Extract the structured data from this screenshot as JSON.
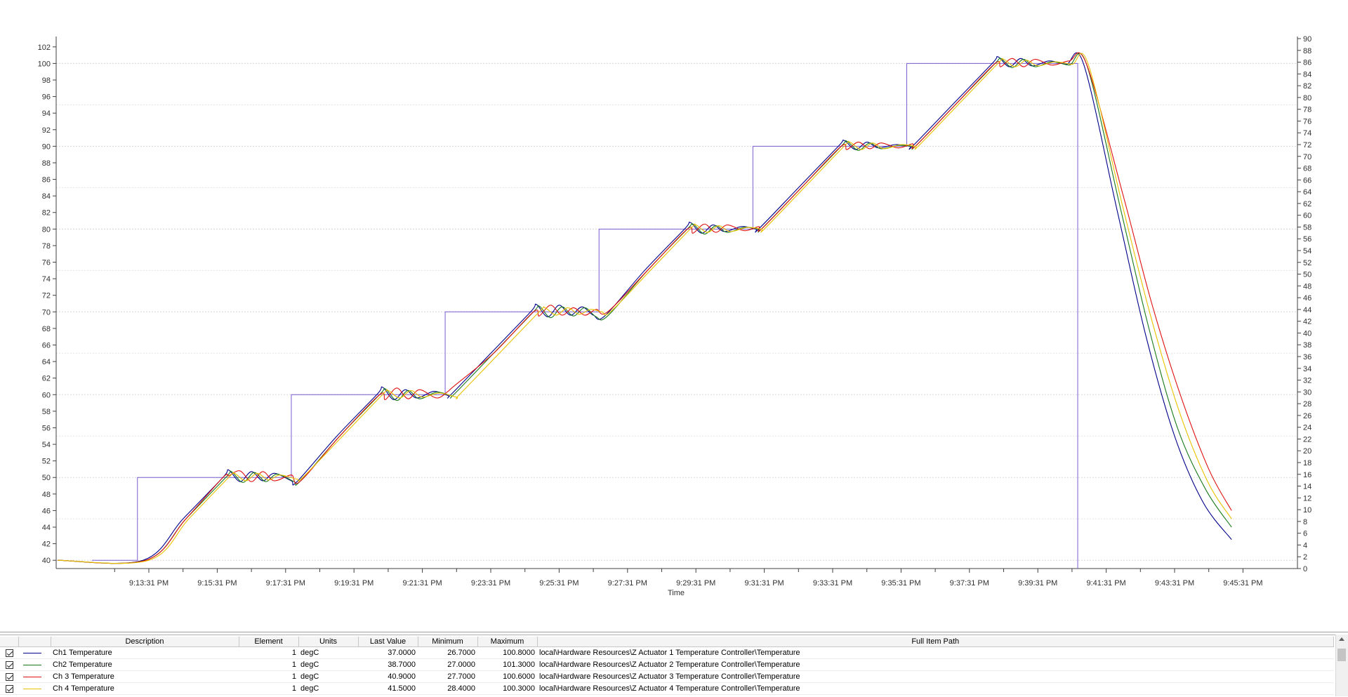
{
  "chart_data": {
    "type": "line",
    "xlabel": "Time",
    "x_ticks": [
      "9:13:31 PM",
      "9:15:31 PM",
      "9:17:31 PM",
      "9:19:31 PM",
      "9:21:31 PM",
      "9:23:31 PM",
      "9:25:31 PM",
      "9:27:31 PM",
      "9:29:31 PM",
      "9:31:31 PM",
      "9:33:31 PM",
      "9:35:31 PM",
      "9:37:31 PM",
      "9:39:31 PM",
      "9:41:31 PM",
      "9:43:31 PM",
      "9:45:31 PM"
    ],
    "y_left": {
      "min": 39,
      "max": 103,
      "ticks": [
        40,
        42,
        44,
        46,
        48,
        50,
        52,
        54,
        56,
        58,
        60,
        62,
        64,
        66,
        68,
        70,
        72,
        74,
        76,
        78,
        80,
        82,
        84,
        86,
        88,
        90,
        92,
        94,
        96,
        98,
        100,
        102
      ]
    },
    "y_right": {
      "min": 0,
      "max": 90,
      "ticks": [
        0,
        2,
        4,
        6,
        8,
        10,
        12,
        14,
        16,
        18,
        20,
        22,
        24,
        26,
        28,
        30,
        32,
        34,
        36,
        38,
        40,
        42,
        44,
        46,
        48,
        50,
        52,
        54,
        56,
        58,
        60,
        62,
        64,
        66,
        68,
        70,
        72,
        74,
        76,
        78,
        80,
        82,
        84,
        86,
        88,
        90
      ]
    },
    "grid": true,
    "setpoint": {
      "color": "#7a5ccf",
      "points": [
        [
          -100,
          40
        ],
        [
          -20,
          40
        ],
        [
          -20,
          50
        ],
        [
          250,
          50
        ],
        [
          250,
          60
        ],
        [
          520,
          60
        ],
        [
          520,
          70
        ],
        [
          790,
          70
        ],
        [
          790,
          80
        ],
        [
          1060,
          80
        ],
        [
          1060,
          90
        ],
        [
          1330,
          90
        ],
        [
          1330,
          100
        ],
        [
          1630,
          100
        ],
        [
          1630,
          39
        ]
      ]
    },
    "series": [
      {
        "name": "Ch1 Temperature",
        "color": "#00008b",
        "points": [
          [
            -160,
            40
          ],
          [
            -10,
            40
          ],
          [
            60,
            45
          ],
          [
            130,
            50
          ],
          [
            140,
            50.9
          ],
          [
            160,
            49.5
          ],
          [
            180,
            50.7
          ],
          [
            200,
            49.6
          ],
          [
            220,
            50.5
          ],
          [
            250,
            49.6
          ],
          [
            260,
            49.5
          ],
          [
            330,
            55
          ],
          [
            400,
            60
          ],
          [
            410,
            60.9
          ],
          [
            430,
            59.4
          ],
          [
            450,
            60.6
          ],
          [
            470,
            59.6
          ],
          [
            500,
            60.4
          ],
          [
            525,
            59.9
          ],
          [
            530,
            60
          ],
          [
            600,
            65
          ],
          [
            670,
            70
          ],
          [
            680,
            70.9
          ],
          [
            700,
            69.4
          ],
          [
            720,
            70.8
          ],
          [
            740,
            69.6
          ],
          [
            760,
            70.6
          ],
          [
            780,
            69.6
          ],
          [
            800,
            69.5
          ],
          [
            870,
            75
          ],
          [
            940,
            80
          ],
          [
            950,
            80.8
          ],
          [
            970,
            79.5
          ],
          [
            990,
            80.5
          ],
          [
            1010,
            79.7
          ],
          [
            1040,
            80.3
          ],
          [
            1065,
            80
          ],
          [
            1070,
            80
          ],
          [
            1140,
            85
          ],
          [
            1210,
            90
          ],
          [
            1220,
            90.7
          ],
          [
            1240,
            89.6
          ],
          [
            1260,
            90.5
          ],
          [
            1280,
            89.8
          ],
          [
            1310,
            90.2
          ],
          [
            1335,
            90
          ],
          [
            1340,
            90
          ],
          [
            1410,
            95
          ],
          [
            1480,
            100
          ],
          [
            1490,
            100.8
          ],
          [
            1510,
            99.6
          ],
          [
            1530,
            100.6
          ],
          [
            1550,
            99.7
          ],
          [
            1580,
            100.3
          ],
          [
            1610,
            99.9
          ],
          [
            1640,
            100
          ],
          [
            1700,
            82
          ],
          [
            1750,
            67
          ],
          [
            1800,
            55
          ],
          [
            1850,
            47
          ],
          [
            1900,
            42.5
          ]
        ]
      },
      {
        "name": "Ch2 Temperature",
        "color": "#1a7a1a",
        "points": [
          [
            -160,
            40
          ],
          [
            -5,
            40
          ],
          [
            65,
            45
          ],
          [
            135,
            50
          ],
          [
            145,
            50.7
          ],
          [
            165,
            49.4
          ],
          [
            185,
            50.6
          ],
          [
            205,
            49.5
          ],
          [
            225,
            50.4
          ],
          [
            255,
            49.5
          ],
          [
            265,
            49.5
          ],
          [
            335,
            55
          ],
          [
            405,
            60
          ],
          [
            415,
            60.7
          ],
          [
            435,
            59.3
          ],
          [
            455,
            60.5
          ],
          [
            475,
            59.5
          ],
          [
            505,
            60.3
          ],
          [
            530,
            59.9
          ],
          [
            535,
            60
          ],
          [
            605,
            65
          ],
          [
            675,
            70
          ],
          [
            685,
            70.7
          ],
          [
            705,
            69.3
          ],
          [
            725,
            70.6
          ],
          [
            745,
            69.5
          ],
          [
            765,
            70.5
          ],
          [
            785,
            69.4
          ],
          [
            805,
            69.5
          ],
          [
            875,
            75
          ],
          [
            945,
            80
          ],
          [
            955,
            80.6
          ],
          [
            975,
            79.4
          ],
          [
            995,
            80.4
          ],
          [
            1015,
            79.6
          ],
          [
            1045,
            80.2
          ],
          [
            1070,
            80
          ],
          [
            1075,
            80
          ],
          [
            1145,
            85
          ],
          [
            1215,
            90
          ],
          [
            1225,
            90.6
          ],
          [
            1245,
            89.5
          ],
          [
            1265,
            90.4
          ],
          [
            1285,
            89.7
          ],
          [
            1315,
            90.1
          ],
          [
            1340,
            90
          ],
          [
            1345,
            90
          ],
          [
            1415,
            95
          ],
          [
            1485,
            100
          ],
          [
            1495,
            100.6
          ],
          [
            1515,
            99.5
          ],
          [
            1535,
            100.5
          ],
          [
            1555,
            99.6
          ],
          [
            1585,
            100.2
          ],
          [
            1615,
            99.8
          ],
          [
            1645,
            100
          ],
          [
            1705,
            82.5
          ],
          [
            1755,
            68
          ],
          [
            1805,
            56
          ],
          [
            1855,
            48.5
          ],
          [
            1900,
            44
          ]
        ]
      },
      {
        "name": "Ch 3 Temperature",
        "color": "#e01010",
        "points": [
          [
            -160,
            40
          ],
          [
            -5,
            40
          ],
          [
            65,
            45
          ],
          [
            130,
            50
          ],
          [
            140,
            50.2
          ],
          [
            160,
            50.8
          ],
          [
            180,
            49.5
          ],
          [
            200,
            50.7
          ],
          [
            220,
            49.6
          ],
          [
            250,
            50.3
          ],
          [
            265,
            49.5
          ],
          [
            335,
            55
          ],
          [
            405,
            60
          ],
          [
            415,
            59.4
          ],
          [
            435,
            60.8
          ],
          [
            455,
            59.5
          ],
          [
            475,
            60.6
          ],
          [
            505,
            59.6
          ],
          [
            525,
            60.4
          ],
          [
            535,
            61
          ],
          [
            605,
            65
          ],
          [
            675,
            70
          ],
          [
            685,
            69.5
          ],
          [
            705,
            70.8
          ],
          [
            725,
            69.6
          ],
          [
            745,
            70.5
          ],
          [
            765,
            69.6
          ],
          [
            785,
            70.3
          ],
          [
            805,
            70
          ],
          [
            875,
            75
          ],
          [
            945,
            80
          ],
          [
            955,
            79.5
          ],
          [
            975,
            80.6
          ],
          [
            995,
            79.6
          ],
          [
            1015,
            80.5
          ],
          [
            1045,
            79.8
          ],
          [
            1070,
            80.3
          ],
          [
            1075,
            80
          ],
          [
            1145,
            85
          ],
          [
            1215,
            90
          ],
          [
            1225,
            89.6
          ],
          [
            1245,
            90.5
          ],
          [
            1265,
            89.7
          ],
          [
            1285,
            90.4
          ],
          [
            1315,
            89.8
          ],
          [
            1340,
            90.3
          ],
          [
            1345,
            90
          ],
          [
            1415,
            95
          ],
          [
            1485,
            100
          ],
          [
            1495,
            99.6
          ],
          [
            1515,
            100.6
          ],
          [
            1535,
            99.6
          ],
          [
            1555,
            100.5
          ],
          [
            1585,
            99.8
          ],
          [
            1615,
            100.3
          ],
          [
            1645,
            100
          ],
          [
            1710,
            84
          ],
          [
            1760,
            71
          ],
          [
            1810,
            60
          ],
          [
            1860,
            51
          ],
          [
            1900,
            46
          ]
        ]
      },
      {
        "name": "Ch 4 Temperature",
        "color": "#e8c200",
        "points": [
          [
            -160,
            40
          ],
          [
            0,
            40
          ],
          [
            70,
            45
          ],
          [
            140,
            50
          ],
          [
            150,
            50.5
          ],
          [
            170,
            49.6
          ],
          [
            190,
            50.5
          ],
          [
            210,
            49.7
          ],
          [
            230,
            50.3
          ],
          [
            260,
            49.8
          ],
          [
            270,
            50
          ],
          [
            340,
            55
          ],
          [
            410,
            60
          ],
          [
            420,
            60.5
          ],
          [
            440,
            59.6
          ],
          [
            460,
            60.5
          ],
          [
            480,
            59.7
          ],
          [
            510,
            60.2
          ],
          [
            540,
            59.7
          ],
          [
            545,
            60
          ],
          [
            615,
            65
          ],
          [
            685,
            70
          ],
          [
            695,
            70.5
          ],
          [
            715,
            69.6
          ],
          [
            735,
            70.5
          ],
          [
            755,
            69.7
          ],
          [
            775,
            70.3
          ],
          [
            795,
            70
          ],
          [
            810,
            70
          ],
          [
            880,
            75
          ],
          [
            950,
            80
          ],
          [
            960,
            80.5
          ],
          [
            980,
            79.6
          ],
          [
            1000,
            80.4
          ],
          [
            1020,
            79.7
          ],
          [
            1050,
            80.2
          ],
          [
            1075,
            80
          ],
          [
            1080,
            80
          ],
          [
            1150,
            85
          ],
          [
            1220,
            90
          ],
          [
            1230,
            90.5
          ],
          [
            1250,
            89.6
          ],
          [
            1270,
            90.4
          ],
          [
            1290,
            89.7
          ],
          [
            1320,
            90.2
          ],
          [
            1345,
            90
          ],
          [
            1350,
            90
          ],
          [
            1420,
            95
          ],
          [
            1490,
            100
          ],
          [
            1500,
            100.5
          ],
          [
            1520,
            99.6
          ],
          [
            1540,
            100.4
          ],
          [
            1560,
            99.7
          ],
          [
            1590,
            100.2
          ],
          [
            1620,
            99.9
          ],
          [
            1648,
            100
          ],
          [
            1708,
            83
          ],
          [
            1758,
            69.5
          ],
          [
            1808,
            58
          ],
          [
            1858,
            49.5
          ],
          [
            1900,
            45
          ]
        ]
      }
    ]
  },
  "legend_grid": {
    "headers": {
      "check": "",
      "swatch": "",
      "description": "Description",
      "element": "Element",
      "units": "Units",
      "last_value": "Last Value",
      "minimum": "Minimum",
      "maximum": "Maximum",
      "full_item_path": "Full Item Path"
    },
    "rows": [
      {
        "description": "Ch1 Temperature",
        "element": "1",
        "units": "degC",
        "last_value": "37.0000",
        "minimum": "26.7000",
        "maximum": "100.8000",
        "full_item_path": "local\\Hardware Resources\\Z Actuator 1 Temperature Controller\\Temperature",
        "color": "#00008b"
      },
      {
        "description": "Ch2 Temperature",
        "element": "1",
        "units": "degC",
        "last_value": "38.7000",
        "minimum": "27.0000",
        "maximum": "101.3000",
        "full_item_path": "local\\Hardware Resources\\Z Actuator 2 Temperature Controller\\Temperature",
        "color": "#1a7a1a"
      },
      {
        "description": "Ch 3 Temperature",
        "element": "1",
        "units": "degC",
        "last_value": "40.9000",
        "minimum": "27.7000",
        "maximum": "100.6000",
        "full_item_path": "local\\Hardware Resources\\Z Actuator 3 Temperature Controller\\Temperature",
        "color": "#e01010"
      },
      {
        "description": "Ch 4 Temperature",
        "element": "1",
        "units": "degC",
        "last_value": "41.5000",
        "minimum": "28.4000",
        "maximum": "100.3000",
        "full_item_path": "local\\Hardware Resources\\Z Actuator 4 Temperature Controller\\Temperature",
        "color": "#e8c200"
      }
    ]
  }
}
